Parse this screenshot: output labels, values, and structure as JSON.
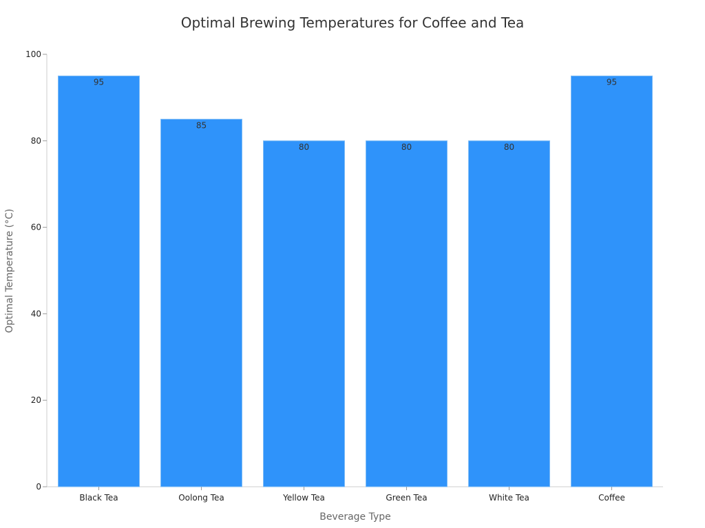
{
  "chart_data": {
    "type": "bar",
    "title": "Optimal Brewing Temperatures for Coffee and Tea",
    "xlabel": "Beverage Type",
    "ylabel": "Optimal Temperature (°C)",
    "categories": [
      "Black Tea",
      "Oolong Tea",
      "Yellow Tea",
      "Green Tea",
      "White Tea",
      "Coffee"
    ],
    "values": [
      95,
      85,
      80,
      80,
      80,
      95
    ],
    "ylim": [
      0,
      100
    ],
    "yticks": [
      "0",
      "20",
      "40",
      "60",
      "80",
      "100"
    ],
    "grid": false,
    "legend": "none",
    "data_labels": true,
    "colors": {
      "bar": "#2f93fa"
    }
  }
}
